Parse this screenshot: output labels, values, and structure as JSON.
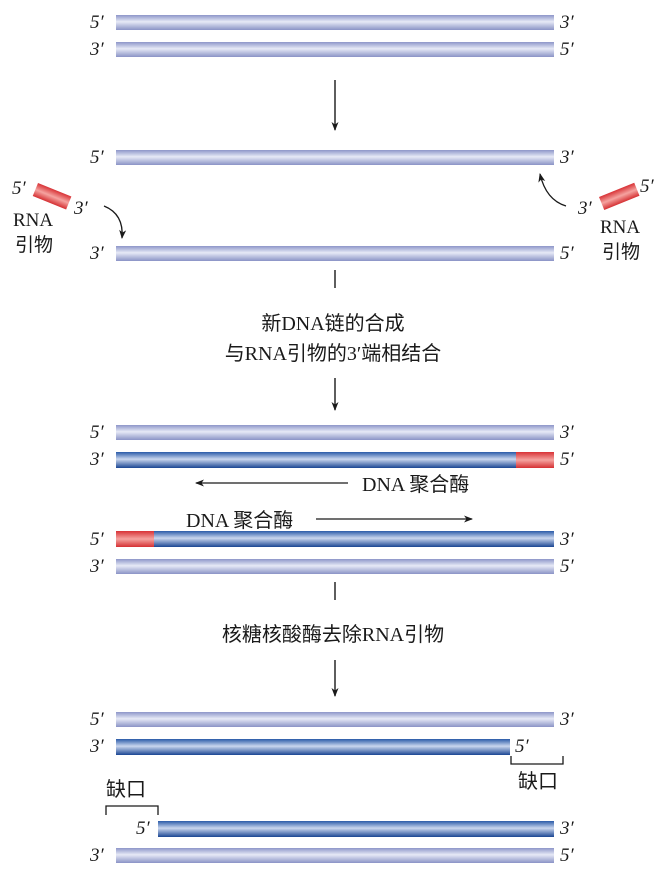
{
  "ends": {
    "five": "5′",
    "three": "3′"
  },
  "primer": {
    "line1": "RNA",
    "line2": "引物"
  },
  "step1_caption": {
    "line1": "新DNA链的合成",
    "line2": "与RNA引物的3′端相结合"
  },
  "polymerase_label": "DNA 聚合酶",
  "step2_caption": "核糖核酸酶去除RNA引物",
  "gap_label": "缺口",
  "colors": {
    "parental_light": "#c4cae6",
    "parental_dark": "#8a93c8",
    "new_strand": "#1f4f9e",
    "primer": "#e0484a"
  }
}
